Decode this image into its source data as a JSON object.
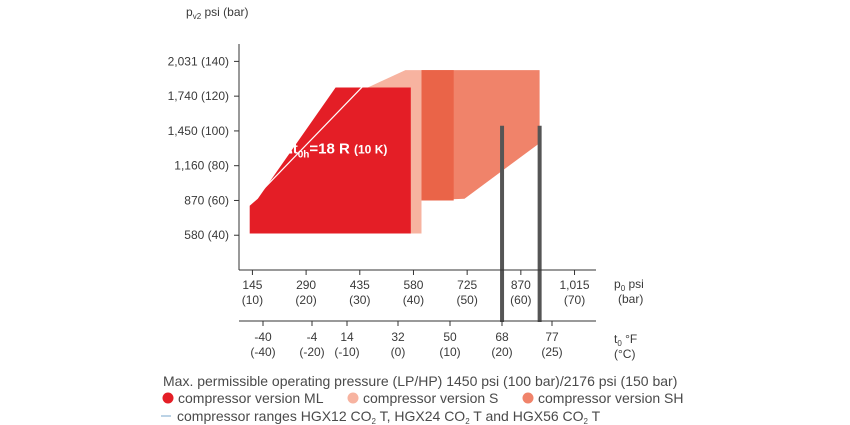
{
  "chart_data": {
    "type": "area",
    "ylabel": "p",
    "ylabel_sub": "v2",
    "ylabel_unit": "psi (bar)",
    "xlabel_top": "p",
    "xlabel_top_sub": "0",
    "xlabel_top_unit": "psi",
    "xlabel_top_unit2": "(bar)",
    "xlabel_bottom": "t",
    "xlabel_bottom_sub": "0",
    "xlabel_bottom_unit": "°F",
    "xlabel_bottom_unit2": "(°C)",
    "y_ticks": [
      {
        "value": 40,
        "label": "580 (40)"
      },
      {
        "value": 60,
        "label": "870 (60)"
      },
      {
        "value": 80,
        "label": "1,160 (80)"
      },
      {
        "value": 100,
        "label": "1,450 (100)"
      },
      {
        "value": 120,
        "label": "1,740 (120)"
      },
      {
        "value": 140,
        "label": "2,031 (140)"
      }
    ],
    "ylim": [
      20,
      150
    ],
    "x_pressure_ticks": [
      {
        "value": 10,
        "psi": "145",
        "bar": "(10)"
      },
      {
        "value": 20,
        "psi": "290",
        "bar": "(20)"
      },
      {
        "value": 30,
        "psi": "435",
        "bar": "(30)"
      },
      {
        "value": 40,
        "psi": "580",
        "bar": "(40)"
      },
      {
        "value": 50,
        "psi": "725",
        "bar": "(50)"
      },
      {
        "value": 60,
        "psi": "870",
        "bar": "(60)"
      },
      {
        "value": 70,
        "psi": "1,015",
        "bar": "(70)"
      }
    ],
    "xlim_pressure": [
      7.5,
      74
    ],
    "x_temperature_ticks": [
      {
        "value": -40,
        "f": "-40",
        "c": "(-40)"
      },
      {
        "value": -20,
        "f": "-4",
        "c": "(-20)"
      },
      {
        "value": -10,
        "f": "14",
        "c": "(-10)"
      },
      {
        "value": 0,
        "f": "32",
        "c": "(0)"
      },
      {
        "value": 10,
        "f": "50",
        "c": "(10)"
      },
      {
        "value": 20,
        "f": "68",
        "c": "(20)"
      },
      {
        "value": 25,
        "f": "77",
        "c": "(25)"
      }
    ],
    "series": [
      {
        "name": "compressor version SH",
        "color": "#f0836a",
        "polygon": [
          [
            41.5,
            60
          ],
          [
            41.5,
            135
          ],
          [
            63.5,
            135
          ],
          [
            63.5,
            93
          ],
          [
            49.5,
            61
          ]
        ]
      },
      {
        "name": "compressor version S",
        "color": "#f7b3a0",
        "polygon": [
          [
            31.5,
            41
          ],
          [
            31.5,
            125
          ],
          [
            38.5,
            135
          ],
          [
            41.5,
            135
          ],
          [
            41.5,
            41
          ]
        ]
      },
      {
        "name": "compressor version ML",
        "color": "#e41e26",
        "polygon": [
          [
            9.5,
            41
          ],
          [
            9.5,
            57
          ],
          [
            11,
            61
          ],
          [
            25.5,
            125
          ],
          [
            39.5,
            125
          ],
          [
            39.5,
            41
          ]
        ]
      }
    ],
    "extra_bands": [
      {
        "color": "#ea6448",
        "polygon": [
          [
            41.5,
            60
          ],
          [
            41.5,
            135
          ],
          [
            47.5,
            135
          ],
          [
            47.5,
            60
          ]
        ]
      }
    ],
    "range_line": {
      "name": "compressor ranges HGX12 CO2 T, HGX24 CO2 T and HGX56 CO2 T",
      "color": "#ffffff",
      "points": [
        [
          10,
          60
        ],
        [
          33.5,
          135
        ]
      ]
    },
    "vertical_lines": [
      {
        "x": 56.5,
        "y_from": 20,
        "y_to": 103,
        "color": "#555555"
      },
      {
        "x": 63.5,
        "y_from": 20,
        "y_to": 103,
        "color": "#555555"
      }
    ],
    "annotation": {
      "main": "Δt",
      "sub": "0h",
      "rest": "=18 R",
      "paren": "(10 K)",
      "x": 15.5,
      "y": 87
    },
    "caption": "Max. permissible operating pressure (LP/HP) 1450 psi (100 bar)/2176 psi (150 bar)",
    "legend": [
      {
        "label": "compressor version ML",
        "color": "#e41e26",
        "symbol": "dot"
      },
      {
        "label": "compressor version S",
        "color": "#f7b3a0",
        "symbol": "dot"
      },
      {
        "label": "compressor version SH",
        "color": "#f0836a",
        "symbol": "dot"
      },
      {
        "label_parts": [
          "compressor ranges HGX12 CO",
          "2",
          " T, HGX24 CO",
          "2",
          " T and HGX56 CO",
          "2",
          " T"
        ],
        "color": "#bcd3e6",
        "symbol": "line"
      }
    ]
  }
}
